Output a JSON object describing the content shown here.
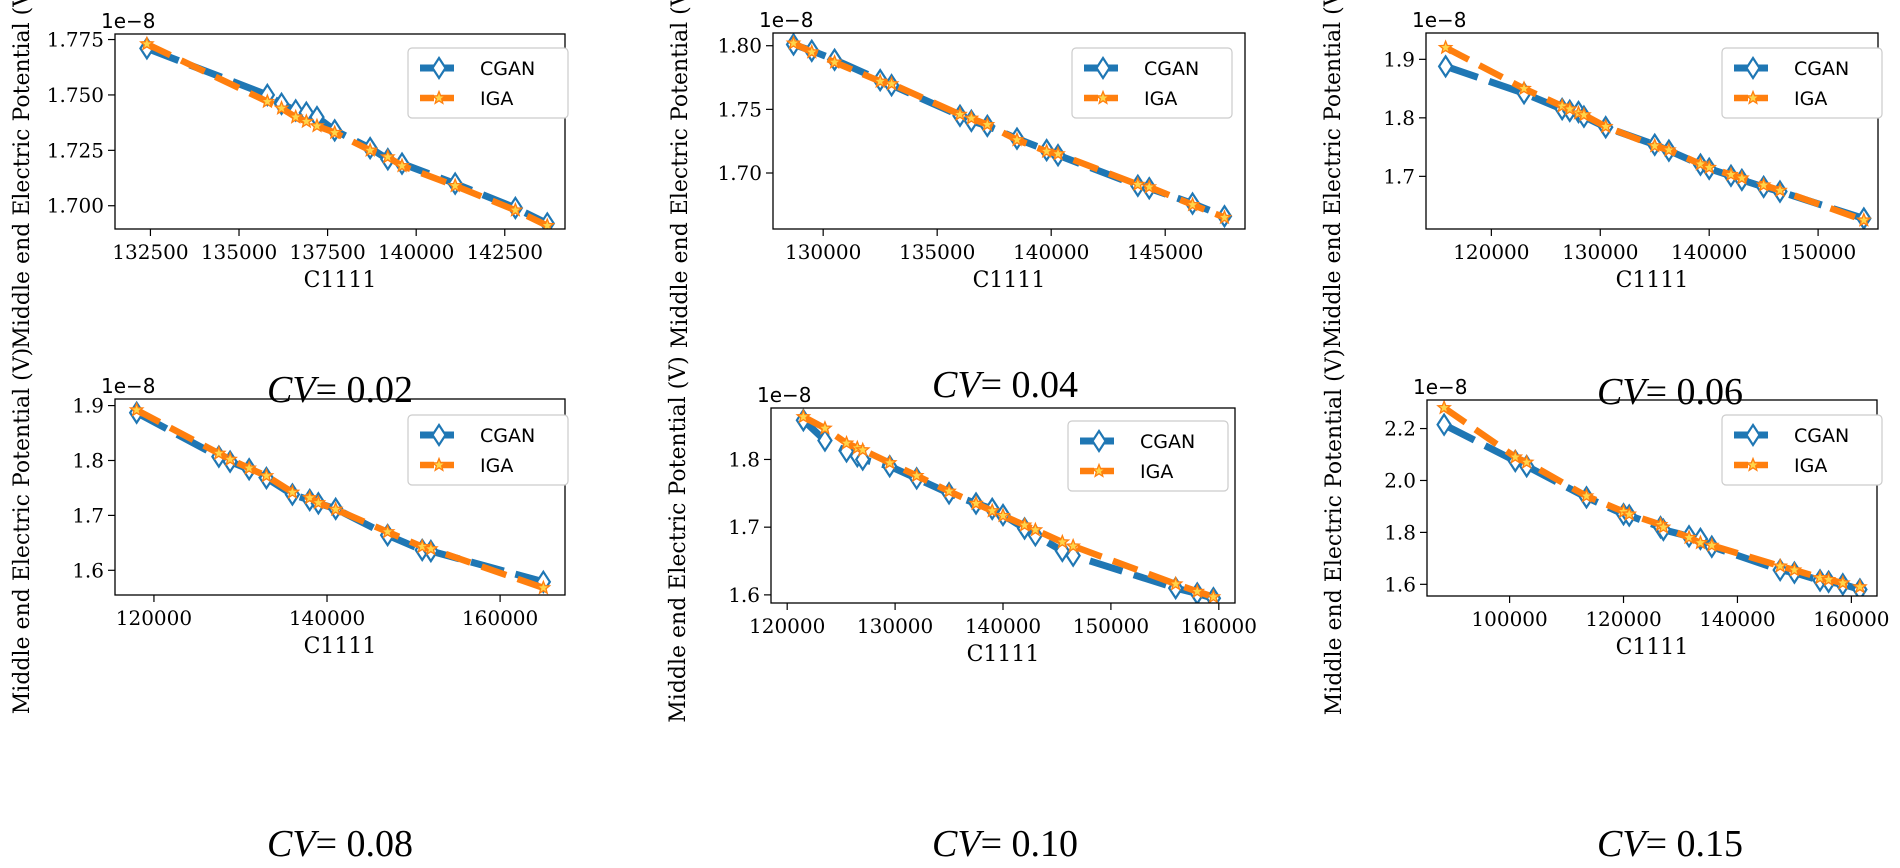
{
  "colors": {
    "cgan": "#1f77b4",
    "iga": "#ff7f0e",
    "star": "#ffd54a"
  },
  "chart_data": [
    {
      "type": "line",
      "caption_var": "CV",
      "caption_eq": "= 0.02",
      "xlabel": "C1111",
      "ylabel": "Middle end Electric Potential (V)",
      "offset_text": "1e−8",
      "legend_position": "top-right",
      "xlim": [
        131500,
        144200
      ],
      "ylim": [
        1.6895,
        1.7775
      ],
      "xticks": [
        132500,
        135000,
        137500,
        140000,
        142500
      ],
      "xtick_labels": [
        "132500",
        "135000",
        "137500",
        "140000",
        "142500"
      ],
      "yticks": [
        1.7,
        1.725,
        1.75,
        1.775
      ],
      "ytick_labels": [
        "1.700",
        "1.725",
        "1.750",
        "1.775"
      ],
      "series": [
        {
          "name": "CGAN",
          "x": [
            132400,
            135800,
            136200,
            136600,
            136900,
            137200,
            137700,
            138700,
            139200,
            139600,
            141100,
            142800,
            143700
          ],
          "y": [
            1.771,
            1.75,
            1.746,
            1.743,
            1.742,
            1.74,
            1.734,
            1.726,
            1.721,
            1.719,
            1.71,
            1.699,
            1.692
          ]
        },
        {
          "name": "IGA",
          "x": [
            132400,
            135800,
            136200,
            136600,
            136900,
            137200,
            137700,
            138700,
            139200,
            139600,
            141100,
            142800,
            143700
          ],
          "y": [
            1.773,
            1.747,
            1.744,
            1.74,
            1.738,
            1.736,
            1.733,
            1.725,
            1.722,
            1.718,
            1.709,
            1.698,
            1.691
          ]
        }
      ]
    },
    {
      "type": "line",
      "caption_var": "CV",
      "caption_eq": "= 0.04",
      "xlabel": "C1111",
      "ylabel": "Middle end Electric Potential (V)",
      "offset_text": "1e−8",
      "legend_position": "top-right",
      "xlim": [
        127800,
        148500
      ],
      "ylim": [
        1.656,
        1.81
      ],
      "xticks": [
        130000,
        135000,
        140000,
        145000
      ],
      "xtick_labels": [
        "130000",
        "135000",
        "140000",
        "145000"
      ],
      "yticks": [
        1.7,
        1.75,
        1.8
      ],
      "ytick_labels": [
        "1.70",
        "1.75",
        "1.80"
      ],
      "series": [
        {
          "name": "CGAN",
          "x": [
            128700,
            129500,
            130500,
            132500,
            133000,
            136000,
            136500,
            137200,
            138500,
            139800,
            140300,
            143800,
            144300,
            146200,
            147600
          ],
          "y": [
            1.801,
            1.796,
            1.789,
            1.773,
            1.769,
            1.745,
            1.741,
            1.737,
            1.727,
            1.718,
            1.714,
            1.69,
            1.688,
            1.676,
            1.666
          ]
        },
        {
          "name": "IGA",
          "x": [
            128700,
            129500,
            130500,
            132500,
            133000,
            136000,
            136500,
            137200,
            138500,
            139800,
            140300,
            143800,
            144300,
            146200,
            147600
          ],
          "y": [
            1.802,
            1.795,
            1.787,
            1.772,
            1.77,
            1.746,
            1.743,
            1.738,
            1.726,
            1.717,
            1.715,
            1.691,
            1.689,
            1.675,
            1.665
          ]
        }
      ]
    },
    {
      "type": "line",
      "caption_var": "CV",
      "caption_eq": "= 0.06",
      "xlabel": "C1111",
      "ylabel": "Middle end Electric Potential (V)",
      "offset_text": "1e−8",
      "legend_position": "top-right",
      "xlim": [
        114000,
        155500
      ],
      "ylim": [
        1.61,
        1.945
      ],
      "xticks": [
        120000,
        130000,
        140000,
        150000
      ],
      "xtick_labels": [
        "120000",
        "130000",
        "140000",
        "150000"
      ],
      "yticks": [
        1.7,
        1.8,
        1.9
      ],
      "ytick_labels": [
        "1.7",
        "1.8",
        "1.9"
      ],
      "series": [
        {
          "name": "CGAN",
          "x": [
            115800,
            123000,
            126500,
            127200,
            128000,
            128500,
            130500,
            135000,
            136300,
            139200,
            140000,
            142000,
            143000,
            145000,
            146500,
            154200
          ],
          "y": [
            1.888,
            1.842,
            1.815,
            1.812,
            1.81,
            1.802,
            1.784,
            1.754,
            1.744,
            1.72,
            1.713,
            1.701,
            1.694,
            1.682,
            1.674,
            1.628
          ]
        },
        {
          "name": "IGA",
          "x": [
            115800,
            123000,
            126500,
            127200,
            128000,
            128500,
            130500,
            135000,
            136300,
            139200,
            140000,
            142000,
            143000,
            145000,
            146500,
            154200
          ],
          "y": [
            1.92,
            1.85,
            1.82,
            1.815,
            1.808,
            1.805,
            1.785,
            1.752,
            1.745,
            1.721,
            1.715,
            1.703,
            1.697,
            1.685,
            1.676,
            1.625
          ]
        }
      ]
    },
    {
      "type": "line",
      "caption_var": "CV",
      "caption_eq": "= 0.08",
      "xlabel": "C1111",
      "ylabel": "Middle end Electric Potential (V)",
      "offset_text": "1e−8",
      "legend_position": "top-right",
      "xlim": [
        115500,
        167500
      ],
      "ylim": [
        1.555,
        1.912
      ],
      "xticks": [
        120000,
        140000,
        160000
      ],
      "xtick_labels": [
        "120000",
        "140000",
        "160000"
      ],
      "yticks": [
        1.6,
        1.7,
        1.8,
        1.9
      ],
      "ytick_labels": [
        "1.6",
        "1.7",
        "1.8",
        "1.9"
      ],
      "series": [
        {
          "name": "CGAN",
          "x": [
            118000,
            127500,
            128800,
            131000,
            133000,
            136000,
            138000,
            139000,
            141000,
            147000,
            151000,
            152000,
            165000
          ],
          "y": [
            1.887,
            1.807,
            1.798,
            1.784,
            1.768,
            1.738,
            1.728,
            1.722,
            1.712,
            1.664,
            1.637,
            1.635,
            1.579
          ]
        },
        {
          "name": "IGA",
          "x": [
            118000,
            127500,
            128800,
            131000,
            133000,
            136000,
            138000,
            139000,
            141000,
            147000,
            151000,
            152000,
            165000
          ],
          "y": [
            1.892,
            1.813,
            1.802,
            1.786,
            1.772,
            1.742,
            1.732,
            1.723,
            1.711,
            1.67,
            1.643,
            1.639,
            1.568
          ]
        }
      ]
    },
    {
      "type": "line",
      "caption_var": "CV",
      "caption_eq": "= 0.10",
      "xlabel": "C1111",
      "ylabel": "Middle end Electric Potential (V)",
      "offset_text": "1e−8",
      "legend_position": "top-right",
      "xlim": [
        118500,
        161500
      ],
      "ylim": [
        1.588,
        1.876
      ],
      "xticks": [
        120000,
        130000,
        140000,
        150000,
        160000
      ],
      "xtick_labels": [
        "120000",
        "130000",
        "140000",
        "150000",
        "160000"
      ],
      "yticks": [
        1.6,
        1.7,
        1.8
      ],
      "ytick_labels": [
        "1.6",
        "1.7",
        "1.8"
      ],
      "series": [
        {
          "name": "CGAN",
          "x": [
            121500,
            123500,
            125500,
            126500,
            127000,
            129500,
            132000,
            135000,
            137500,
            139000,
            140000,
            142000,
            143000,
            145500,
            146500,
            156000,
            158000,
            159500
          ],
          "y": [
            1.858,
            1.828,
            1.812,
            1.805,
            1.8,
            1.79,
            1.772,
            1.75,
            1.735,
            1.727,
            1.718,
            1.698,
            1.688,
            1.665,
            1.658,
            1.61,
            1.602,
            1.595
          ]
        },
        {
          "name": "IGA",
          "x": [
            121500,
            123500,
            125500,
            126500,
            127000,
            129500,
            132000,
            135000,
            137500,
            139000,
            140000,
            142000,
            143000,
            145500,
            146500,
            156000,
            158000,
            159500
          ],
          "y": [
            1.863,
            1.846,
            1.824,
            1.817,
            1.814,
            1.795,
            1.776,
            1.753,
            1.735,
            1.724,
            1.717,
            1.703,
            1.696,
            1.678,
            1.672,
            1.616,
            1.605,
            1.597
          ]
        }
      ]
    },
    {
      "type": "line",
      "caption_var": "CV",
      "caption_eq": "= 0.15",
      "xlabel": "C1111",
      "ylabel": "Middle end Electric Potential (V)",
      "offset_text": "1e−8",
      "legend_position": "top-right",
      "xlim": [
        85500,
        164500
      ],
      "ylim": [
        1.555,
        2.31
      ],
      "xticks": [
        100000,
        120000,
        140000,
        160000
      ],
      "xtick_labels": [
        "100000",
        "120000",
        "140000",
        "160000"
      ],
      "yticks": [
        1.6,
        1.8,
        2.0,
        2.2
      ],
      "ytick_labels": [
        "1.6",
        "1.8",
        "2.0",
        "2.2"
      ],
      "series": [
        {
          "name": "CGAN",
          "x": [
            88500,
            101000,
            103000,
            113500,
            120000,
            121000,
            126500,
            127000,
            131500,
            133500,
            135500,
            147500,
            150000,
            154500,
            156000,
            158500,
            161500
          ],
          "y": [
            2.215,
            2.075,
            2.055,
            1.935,
            1.87,
            1.865,
            1.82,
            1.81,
            1.785,
            1.775,
            1.745,
            1.655,
            1.645,
            1.615,
            1.61,
            1.6,
            1.58
          ]
        },
        {
          "name": "IGA",
          "x": [
            88500,
            101000,
            103000,
            113500,
            120000,
            121000,
            126500,
            127000,
            131500,
            133500,
            135500,
            147500,
            150000,
            154500,
            156000,
            158500,
            161500
          ],
          "y": [
            2.28,
            2.09,
            2.07,
            1.94,
            1.88,
            1.87,
            1.83,
            1.82,
            1.78,
            1.76,
            1.75,
            1.67,
            1.655,
            1.625,
            1.618,
            1.605,
            1.59
          ]
        }
      ]
    }
  ]
}
